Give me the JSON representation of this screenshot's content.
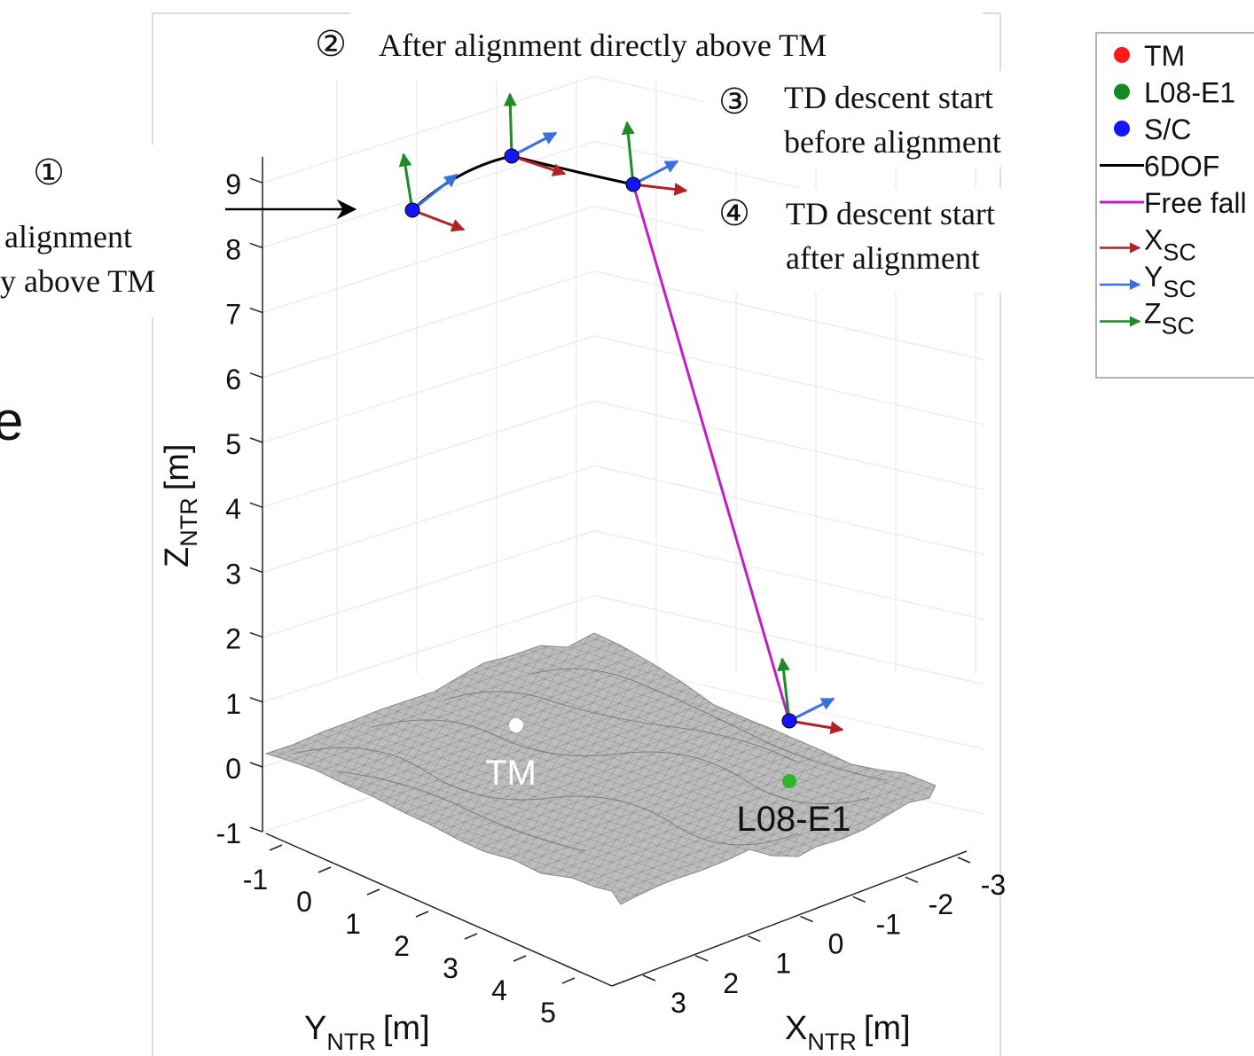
{
  "chart_data": {
    "type": "line3d",
    "axes": {
      "x": {
        "label": "X",
        "label_sub": "NTR",
        "unit": "[m]",
        "ticks": [
          "3",
          "2",
          "1",
          "0",
          "-1",
          "-2",
          "-3"
        ]
      },
      "y": {
        "label": "Y",
        "label_sub": "NTR",
        "unit": "[m]",
        "ticks": [
          "-1",
          "0",
          "1",
          "2",
          "3",
          "4",
          "5"
        ]
      },
      "z": {
        "label": "Z",
        "label_sub": "NTR",
        "unit": "[m]",
        "ticks": [
          "9",
          "8",
          "7",
          "6",
          "5",
          "4",
          "3",
          "2",
          "1",
          "0",
          "-1"
        ],
        "range": [
          -1,
          9
        ]
      }
    },
    "grid": true,
    "surface": "gray terrain mesh",
    "points": [
      {
        "name": "TM",
        "label": "TM",
        "color": "#ffffff"
      },
      {
        "name": "L08-E1",
        "label": "L08-E1",
        "color": "#2db52d"
      }
    ],
    "series": [
      {
        "name": "6DOF",
        "color": "#000000"
      },
      {
        "name": "Free fall",
        "color": "#c21ec8"
      }
    ],
    "annotations": [
      {
        "marker": "①",
        "text": [
          "alignment",
          "y above TM"
        ]
      },
      {
        "marker": "②",
        "text": [
          "After alignment directly above TM"
        ]
      },
      {
        "marker": "③",
        "text": [
          "TD descent start",
          "before alignment"
        ]
      },
      {
        "marker": "④",
        "text": [
          "TD descent start",
          "after alignment"
        ]
      }
    ],
    "stray_text": "e",
    "legend": {
      "position": "top-right",
      "items": [
        {
          "kind": "dot",
          "label": "TM",
          "color": "#ff1a1a"
        },
        {
          "kind": "dot",
          "label": "L08-E1",
          "color": "#128a1f"
        },
        {
          "kind": "dot",
          "label": "S/C",
          "color": "#1414ff"
        },
        {
          "kind": "line",
          "label": "6DOF",
          "color": "#000000"
        },
        {
          "kind": "line",
          "label": "Free fall",
          "color": "#c21ec8"
        },
        {
          "kind": "arrow",
          "label": "X",
          "sub": "SC",
          "color": "#b22222"
        },
        {
          "kind": "arrow",
          "label": "Y",
          "sub": "SC",
          "color": "#3a6fe0"
        },
        {
          "kind": "arrow",
          "label": "Z",
          "sub": "SC",
          "color": "#1e8a28"
        }
      ]
    }
  }
}
